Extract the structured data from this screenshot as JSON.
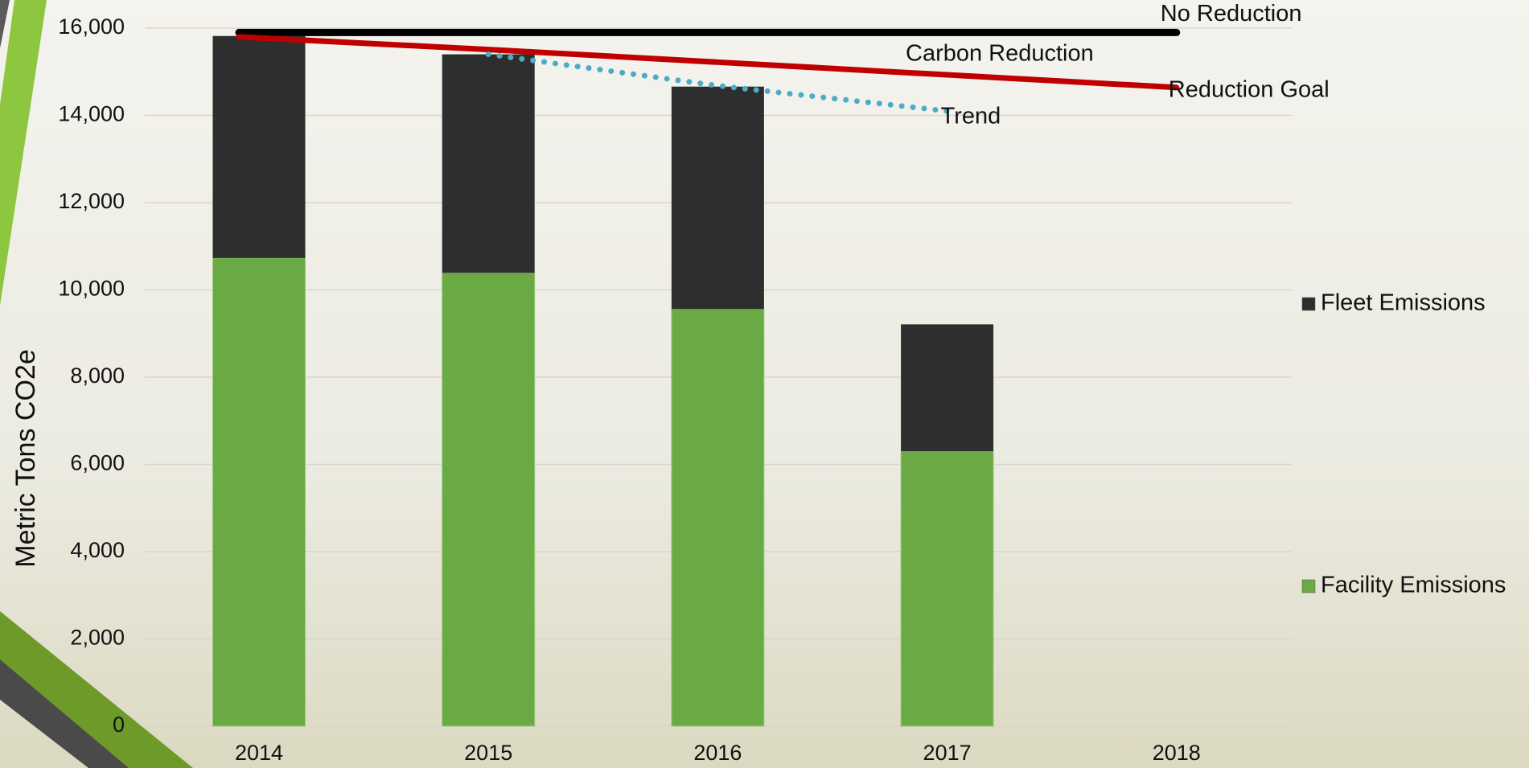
{
  "chart_data": {
    "type": "bar",
    "stacked": true,
    "y_label": "Metric Tons CO2e",
    "annotation": "Carbon Reduction",
    "categories": [
      "2014",
      "2015",
      "2016",
      "2017",
      "2018"
    ],
    "ylim": [
      0,
      16000
    ],
    "yticks": [
      0,
      {
        "value": 2000,
        "label": "2,000"
      },
      {
        "value": 4000,
        "label": "4,000"
      },
      {
        "value": 6000,
        "label": "6,000"
      },
      {
        "value": 8000,
        "label": "8,000"
      },
      {
        "value": 10000,
        "label": "10,000"
      },
      {
        "value": 12000,
        "label": "12,000"
      },
      {
        "value": 14000,
        "label": "14,000"
      },
      {
        "value": 16000,
        "label": "16,000"
      }
    ],
    "grid": true,
    "series": [
      {
        "name": "Facility Emissions",
        "type": "bar",
        "color": "#6aaa45",
        "values": [
          10730,
          10390,
          9560,
          6300,
          null
        ]
      },
      {
        "name": "Fleet Emissions",
        "type": "bar",
        "color": "#2e2e2e",
        "values": [
          5090,
          5010,
          5100,
          2910,
          null
        ]
      },
      {
        "name": "No Reduction",
        "type": "line",
        "color": "#000000",
        "values": [
          15900,
          15900,
          15900,
          15900,
          15900
        ]
      },
      {
        "name": "Reduction Goal",
        "type": "line",
        "color": "#c00000",
        "values": [
          15800,
          15510,
          15220,
          14930,
          14640
        ]
      },
      {
        "name": "Trend",
        "type": "line",
        "style": "dotted",
        "color": "#4bacc6",
        "values": [
          null,
          15400,
          14680,
          14100,
          null
        ]
      }
    ]
  }
}
